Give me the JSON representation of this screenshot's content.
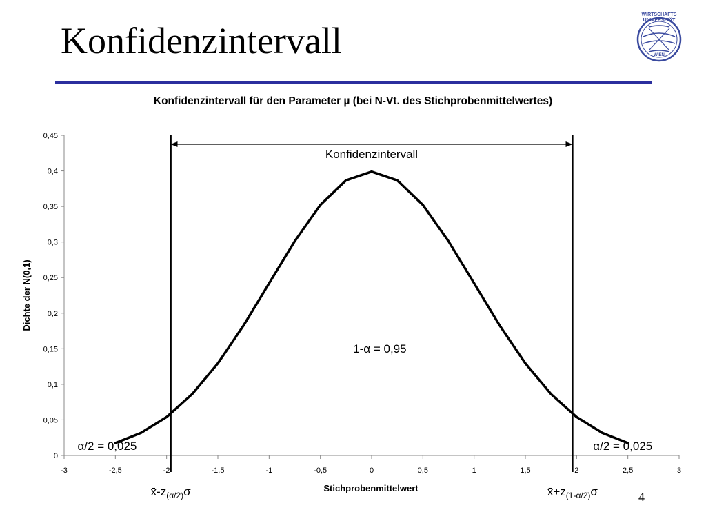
{
  "slide": {
    "title": "Konfidenzintervall",
    "page_number": "4",
    "logo_text": [
      "WIRTSCHAFTS",
      "UNIVERSITÄT",
      "WIEN"
    ]
  },
  "colors": {
    "title_rule": "#2b2f9e",
    "logo": "#3a4a9f",
    "curve": "#000000"
  },
  "chart_data": {
    "type": "line",
    "title": "Konfidenzintervall für den Parameter µ (bei N-Vt. des Stichprobenmittelwertes)",
    "xlabel": "Stichprobenmittelwert",
    "ylabel": "Dichte der N(0,1)",
    "xlim": [
      -3,
      3
    ],
    "ylim": [
      0,
      0.45
    ],
    "xticks": [
      -3,
      -2.5,
      -2,
      -1.5,
      -1,
      -0.5,
      0,
      0.5,
      1,
      1.5,
      2,
      2.5,
      3
    ],
    "xtick_labels": [
      "-3",
      "-2,5",
      "-2",
      "-1,5",
      "-1",
      "-0,5",
      "0",
      "0,5",
      "1",
      "1,5",
      "2",
      "2,5",
      "3"
    ],
    "yticks": [
      0,
      0.05,
      0.1,
      0.15,
      0.2,
      0.25,
      0.3,
      0.35,
      0.4,
      0.45
    ],
    "ytick_labels": [
      "0",
      "0,05",
      "0,1",
      "0,15",
      "0,2",
      "0,25",
      "0,3",
      "0,35",
      "0,4",
      "0,45"
    ],
    "grid": false,
    "series": [
      {
        "x": [
          -2.5,
          -2.25,
          -2,
          -1.75,
          -1.5,
          -1.25,
          -1,
          -0.75,
          -0.5,
          -0.25,
          0,
          0.25,
          0.5,
          0.75,
          1,
          1.25,
          1.5,
          1.75,
          2,
          2.25,
          2.5
        ],
        "values": [
          0.0175,
          0.0317,
          0.054,
          0.0863,
          0.1295,
          0.1826,
          0.242,
          0.3011,
          0.3521,
          0.3867,
          0.3989,
          0.3867,
          0.3521,
          0.3011,
          0.242,
          0.1826,
          0.1295,
          0.0863,
          0.054,
          0.0317,
          0.0175
        ]
      }
    ],
    "bounds": [
      {
        "x": -1.96,
        "label_base": "x̄-z",
        "label_sub": "(α/2)",
        "label_tail": "σ"
      },
      {
        "x": 1.96,
        "label_base": "x̄+z",
        "label_sub": "(1-α/2)",
        "label_tail": "σ"
      }
    ],
    "annotations": {
      "interval_label": "Konfidenzintervall",
      "center_label": "1-α = 0,95",
      "left_tail_label": "α/2 = 0,025",
      "right_tail_label": "α/2 = 0,025"
    }
  }
}
